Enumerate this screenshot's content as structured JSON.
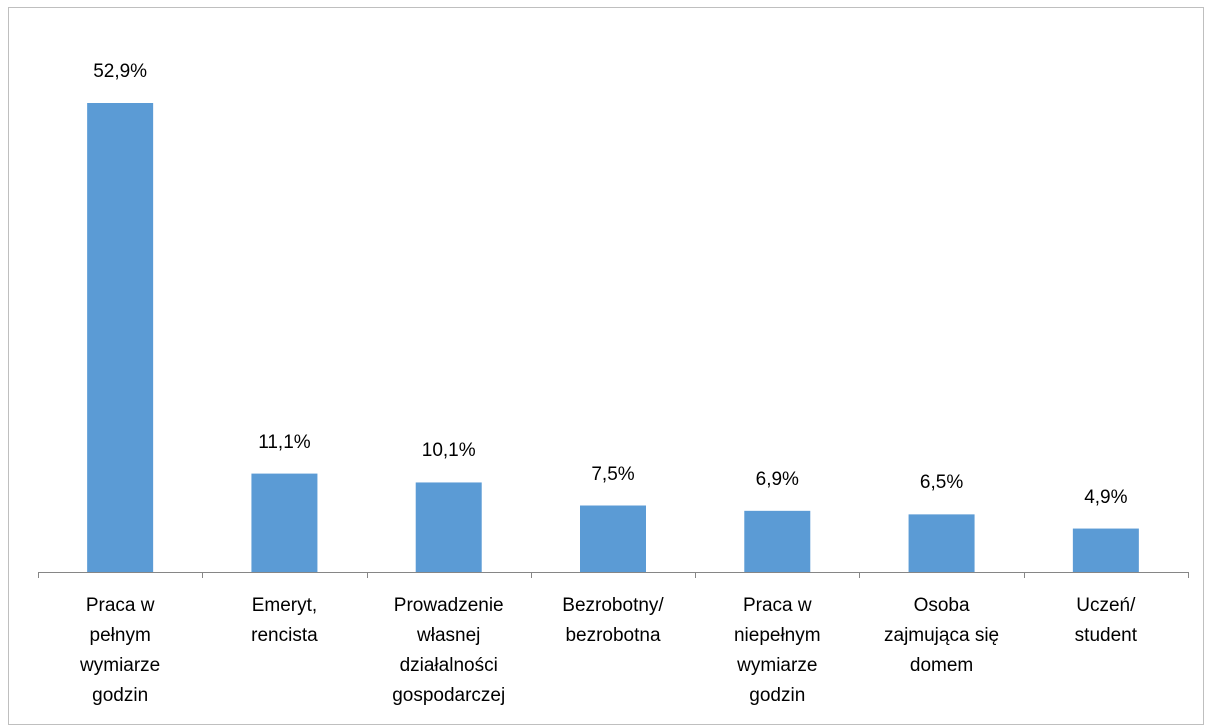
{
  "chart_data": {
    "type": "bar",
    "categories": [
      "Praca w\npełnym\nwymiarze\ngodzin",
      "Emeryt,\nrencista",
      "Prowadzenie\nwłasnej\ndziałalności\ngospodarczej",
      "Bezrobotny/\nbezrobotna",
      "Praca w\nniepełnym\nwymiarze\ngodzin",
      "Osoba\nzajmująca się\ndomem",
      "Uczeń/\nstudent"
    ],
    "values": [
      52.9,
      11.1,
      10.1,
      7.5,
      6.9,
      6.5,
      4.9
    ],
    "value_labels": [
      "52,9%",
      "11,1%",
      "10,1%",
      "7,5%",
      "6,9%",
      "6,5%",
      "4,9%"
    ],
    "color": "#5b9bd5"
  }
}
